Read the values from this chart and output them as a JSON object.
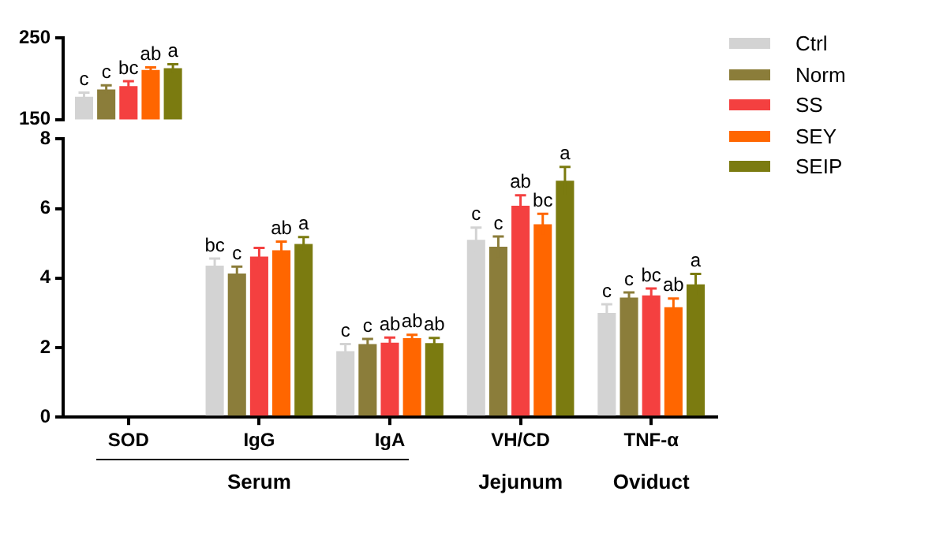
{
  "chart_data": [
    {
      "type": "bar",
      "categories": [
        "SOD",
        "IgG",
        "IgA",
        "VH/CD",
        "TNF-α"
      ],
      "ylim": [
        150,
        250
      ],
      "yticks": [
        150,
        250
      ],
      "tick_labels": "y",
      "legend": "right",
      "series": [
        {
          "name": "Ctrl",
          "color": "#d3d3d3",
          "values": [
            178,
            null,
            null,
            null,
            null
          ],
          "errors": [
            5,
            null,
            null,
            null,
            null
          ],
          "value_labels": [
            "c",
            null,
            null,
            null,
            null
          ]
        },
        {
          "name": "Norm",
          "color": "#8b7d3a",
          "values": [
            187,
            null,
            null,
            null,
            null
          ],
          "errors": [
            5,
            null,
            null,
            null,
            null
          ],
          "value_labels": [
            "c",
            null,
            null,
            null,
            null
          ]
        },
        {
          "name": "SS",
          "color": "#f44040",
          "values": [
            191,
            null,
            null,
            null,
            null
          ],
          "errors": [
            6,
            null,
            null,
            null,
            null
          ],
          "value_labels": [
            "bc",
            null,
            null,
            null,
            null
          ]
        },
        {
          "name": "SEY",
          "color": "#ff6600",
          "values": [
            211,
            null,
            null,
            null,
            null
          ],
          "errors": [
            3,
            null,
            null,
            null,
            null
          ],
          "value_labels": [
            "ab",
            null,
            null,
            null,
            null
          ]
        },
        {
          "name": "SEIP",
          "color": "#7b7b10",
          "values": [
            213,
            null,
            null,
            null,
            null
          ],
          "errors": [
            5,
            null,
            null,
            null,
            null
          ],
          "value_labels": [
            "a",
            null,
            null,
            null,
            null
          ]
        }
      ]
    },
    {
      "type": "bar",
      "categories": [
        "SOD",
        "IgG",
        "IgA",
        "VH/CD",
        "TNF-α"
      ],
      "ylim": [
        0,
        8
      ],
      "yticks": [
        0,
        2,
        4,
        6,
        8
      ],
      "annotations": [
        "Serum",
        "Jejunum",
        "Oviduct"
      ],
      "series": [
        {
          "color": "#d3d3d3",
          "values": [
            null,
            4.36,
            1.9,
            5.1,
            3.0
          ],
          "errors": [
            null,
            0.2,
            0.2,
            0.35,
            0.25
          ],
          "value_labels": [
            null,
            "bc",
            "c",
            "c",
            "c"
          ]
        },
        {
          "color": "#8b7d3a",
          "values": [
            null,
            4.13,
            2.1,
            4.9,
            3.44
          ],
          "errors": [
            null,
            0.2,
            0.15,
            0.3,
            0.15
          ],
          "value_labels": [
            null,
            "c",
            "c",
            "c",
            "c"
          ]
        },
        {
          "color": "#f44040",
          "values": [
            null,
            4.62,
            2.14,
            6.08,
            3.5
          ],
          "errors": [
            null,
            0.25,
            0.15,
            0.3,
            0.2
          ],
          "value_labels": [
            null,
            null,
            "ab",
            "ab",
            "bc"
          ]
        },
        {
          "color": "#ff6600",
          "values": [
            null,
            4.8,
            2.27,
            5.55,
            3.16
          ],
          "errors": [
            null,
            0.25,
            0.1,
            0.3,
            0.25
          ],
          "value_labels": [
            null,
            "ab",
            "ab",
            "bc",
            "ab"
          ]
        },
        {
          "color": "#7b7b10",
          "values": [
            null,
            4.98,
            2.13,
            6.8,
            3.82
          ],
          "errors": [
            null,
            0.2,
            0.15,
            0.4,
            0.3
          ],
          "value_labels": [
            null,
            "a",
            "ab",
            "a",
            "a"
          ]
        }
      ]
    }
  ]
}
